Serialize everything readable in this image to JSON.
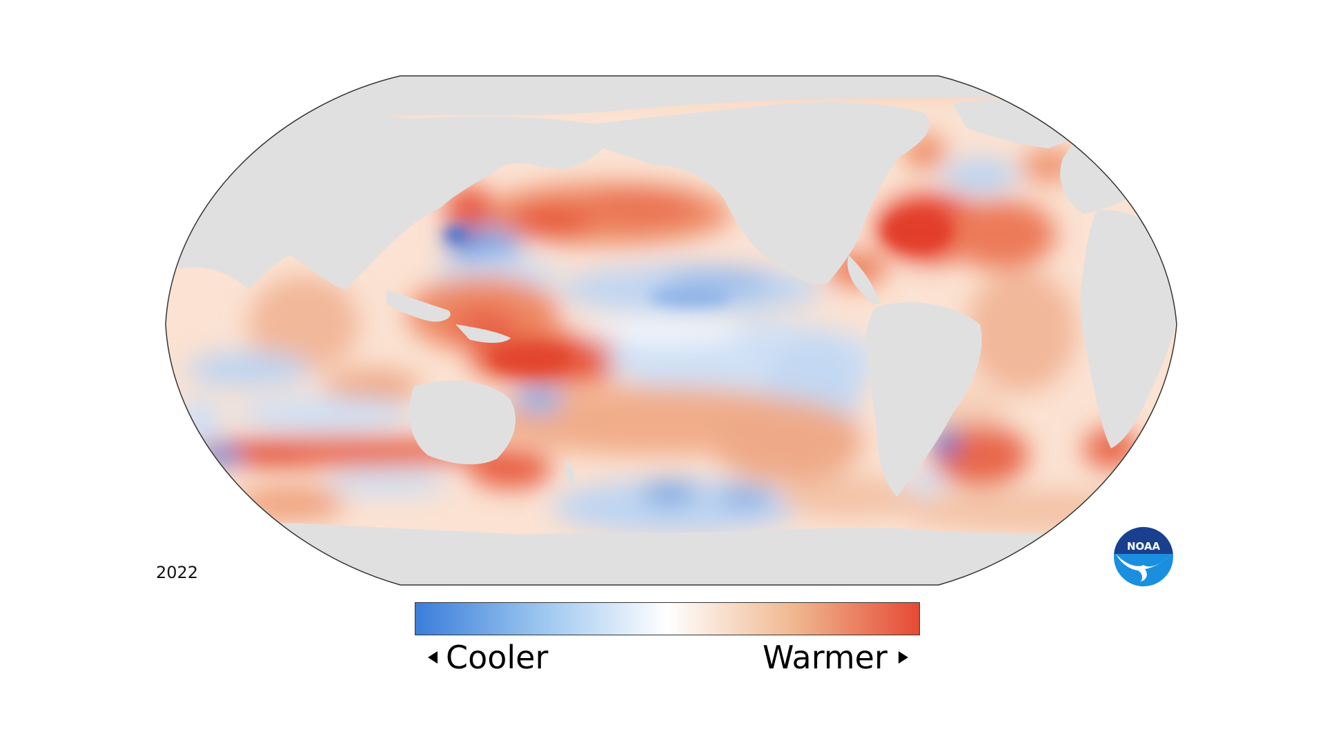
{
  "map": {
    "type": "sea surface temperature anomaly",
    "projection": "Robinson",
    "center": "Pacific",
    "year": "2022",
    "land_color": "#e0e0e0"
  },
  "legend": {
    "cooler_label": "Cooler",
    "warmer_label": "Warmer",
    "colors": [
      "#3a7ddb",
      "#9cc6ef",
      "#ffffff",
      "#f0b890",
      "#e64a35"
    ]
  },
  "logo": {
    "text": "NOAA",
    "colors": {
      "top": "#1a3f8f",
      "bottom": "#1a8fe0",
      "bird": "#ffffff"
    }
  }
}
